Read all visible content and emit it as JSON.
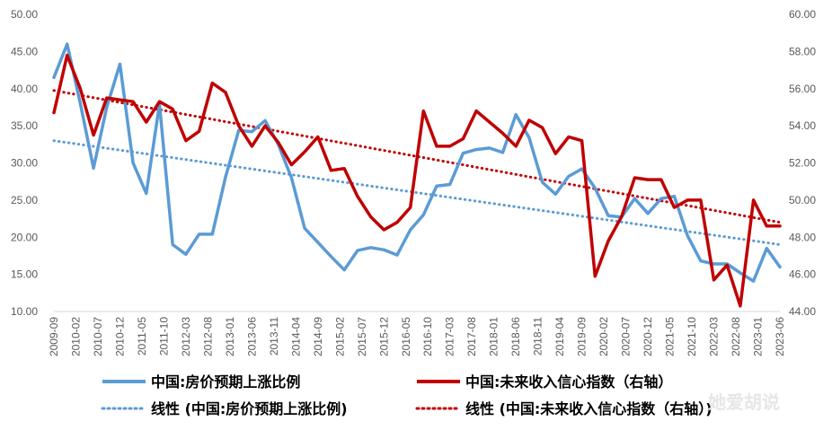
{
  "chart_data": {
    "type": "line",
    "title": "",
    "x_labels": [
      "2009-09",
      "2010-02",
      "2010-07",
      "2010-12",
      "2011-05",
      "2011-10",
      "2012-03",
      "2012-08",
      "2013-01",
      "2013-06",
      "2013-11",
      "2014-04",
      "2014-09",
      "2015-02",
      "2015-07",
      "2015-12",
      "2016-05",
      "2016-10",
      "2017-03",
      "2017-08",
      "2018-01",
      "2018-06",
      "2018-11",
      "2019-04",
      "2019-09",
      "2020-02",
      "2020-07",
      "2020-12",
      "2021-05",
      "2021-10",
      "2022-03",
      "2022-08",
      "2023-01",
      "2023-06"
    ],
    "left_axis": {
      "min": 10,
      "max": 50,
      "step": 5,
      "ticks": [
        "10.00",
        "15.00",
        "20.00",
        "25.00",
        "30.00",
        "35.00",
        "40.00",
        "45.00",
        "50.00"
      ]
    },
    "right_axis": {
      "min": 44,
      "max": 60,
      "step": 2,
      "ticks": [
        "44.00",
        "46.00",
        "48.00",
        "50.00",
        "52.00",
        "54.00",
        "56.00",
        "58.00",
        "60.00"
      ]
    },
    "n_points": 56,
    "series": [
      {
        "name": "中国:房价预期上涨比例",
        "axis": "left",
        "color": "#5b9bd5",
        "style": "solid",
        "values": [
          41.5,
          46.0,
          38.0,
          29.3,
          37.5,
          43.3,
          30.0,
          25.9,
          37.9,
          19.0,
          17.7,
          20.4,
          20.4,
          28.1,
          34.4,
          34.2,
          35.7,
          32.5,
          28.0,
          21.2,
          19.3,
          17.4,
          15.6,
          18.2,
          18.6,
          18.3,
          17.6,
          21.0,
          23.0,
          26.9,
          27.1,
          31.3,
          31.8,
          32.0,
          31.4,
          36.5,
          33.4,
          27.4,
          25.8,
          28.2,
          29.2,
          26.6,
          22.9,
          22.7,
          25.2,
          23.2,
          25.2,
          25.5,
          20.2,
          16.8,
          16.4,
          16.4,
          15.2,
          14.1,
          18.5,
          16.0
        ]
      },
      {
        "name": "中国:未来收入信心指数（右轴）",
        "axis": "right",
        "color": "#c00000",
        "style": "solid",
        "values": [
          54.7,
          57.8,
          56.0,
          53.5,
          55.5,
          55.4,
          55.3,
          54.2,
          55.3,
          54.9,
          53.2,
          53.7,
          56.3,
          55.8,
          54.0,
          52.9,
          54.0,
          53.1,
          51.9,
          52.6,
          53.4,
          51.6,
          51.7,
          50.2,
          49.1,
          48.4,
          48.8,
          49.6,
          54.8,
          52.9,
          52.9,
          53.3,
          54.8,
          54.2,
          53.6,
          52.9,
          54.3,
          53.9,
          52.5,
          53.4,
          53.2,
          45.9,
          47.8,
          49.1,
          51.2,
          51.1,
          51.1,
          49.6,
          50.0,
          50.0,
          45.7,
          46.5,
          44.3,
          50.0,
          48.6,
          48.6
        ]
      },
      {
        "name": "线性 (中国:房价预期上涨比例)",
        "axis": "left",
        "color": "#5b9bd5",
        "style": "dotted",
        "values": [
          33.0,
          19.0
        ]
      },
      {
        "name": "线性 (中国:未来收入信心指数（右轴）)",
        "axis": "right",
        "color": "#c00000",
        "style": "dotted",
        "values": [
          55.9,
          48.8
        ]
      }
    ],
    "legend": {
      "position": "bottom",
      "items": [
        "中国:房价预期上涨比例",
        "中国:未来收入信心指数（右轴）",
        "线性 (中国:房价预期上涨比例)",
        "线性 (中国:未来收入信心指数（右轴）)"
      ]
    },
    "grid": false
  },
  "watermark": "她爱胡说"
}
